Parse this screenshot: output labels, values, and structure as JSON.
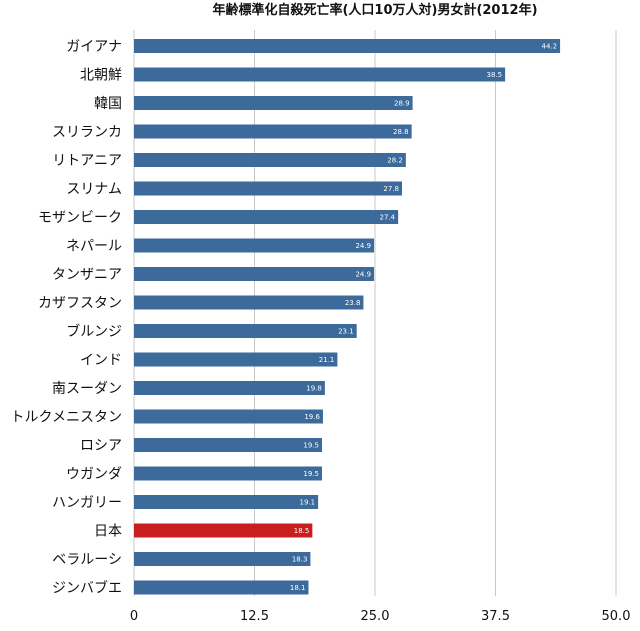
{
  "chart_data": {
    "type": "bar",
    "orientation": "horizontal",
    "title": "年齢標準化自殺死亡率(人口10万人対)男女計(2012年)",
    "categories": [
      "ガイアナ",
      "北朝鮮",
      "韓国",
      "スリランカ",
      "リトアニア",
      "スリナム",
      "モザンビーク",
      "ネパール",
      "タンザニア",
      "カザフスタン",
      "ブルンジ",
      "インド",
      "南スーダン",
      "トルクメニスタン",
      "ロシア",
      "ウガンダ",
      "ハンガリー",
      "日本",
      "ベラルーシ",
      "ジンバブエ"
    ],
    "values": [
      44.2,
      38.5,
      28.9,
      28.8,
      28.2,
      27.8,
      27.4,
      24.9,
      24.9,
      23.8,
      23.1,
      21.1,
      19.8,
      19.6,
      19.5,
      19.5,
      19.1,
      18.5,
      18.3,
      18.1
    ],
    "value_labels": [
      "44.2",
      "38.5",
      "28.9",
      "28.8",
      "28.2",
      "27.8",
      "27.4",
      "24.9",
      "24.9",
      "23.8",
      "23.1",
      "21.1",
      "19.8",
      "19.6",
      "19.5",
      "19.5",
      "19.1",
      "18.5",
      "18.3",
      "18.1"
    ],
    "xlim": [
      0,
      50
    ],
    "xticks": [
      0,
      12.5,
      25,
      37.5,
      50
    ],
    "xtick_labels": [
      "0",
      "12.5",
      "25.0",
      "37.5",
      "50.0"
    ],
    "grid": true,
    "colors": {
      "default": "#3b6a9b",
      "highlight": "#c81e1e",
      "highlight_category": "日本"
    }
  }
}
